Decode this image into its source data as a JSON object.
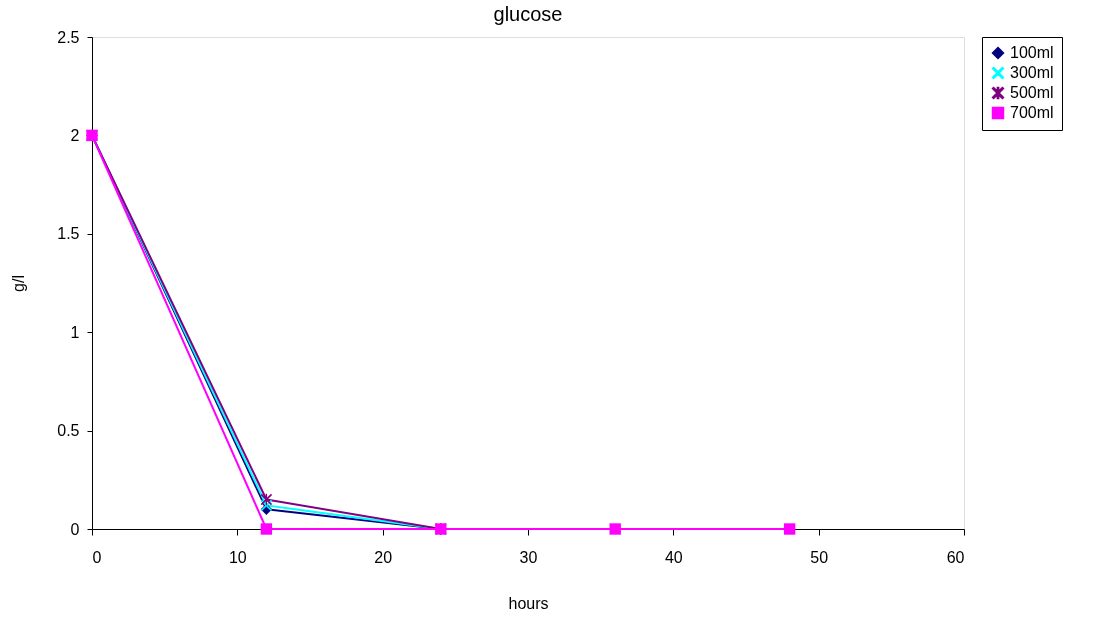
{
  "chart_data": {
    "type": "line",
    "title": "glucose",
    "xlabel": "hours",
    "ylabel": "g/l",
    "x": [
      0,
      12,
      24,
      36,
      48
    ],
    "series": [
      {
        "name": "100ml",
        "color": "#000080",
        "marker": "diamond",
        "values": [
          2,
          0.1,
          0,
          null,
          null
        ]
      },
      {
        "name": "300ml",
        "color": "#00ffff",
        "marker": "cross",
        "values": [
          2,
          0.12,
          0,
          null,
          null
        ]
      },
      {
        "name": "500ml",
        "color": "#800080",
        "marker": "star",
        "values": [
          2,
          0.15,
          0,
          null,
          null
        ]
      },
      {
        "name": "700ml",
        "color": "#ff00ff",
        "marker": "square",
        "values": [
          2,
          0,
          0,
          0,
          0
        ]
      }
    ],
    "xlim": [
      0,
      60
    ],
    "xticks": [
      0,
      10,
      20,
      30,
      40,
      50,
      60
    ],
    "ylim": [
      0,
      2.5
    ],
    "yticks": [
      0,
      0.5,
      1,
      1.5,
      2,
      2.5
    ],
    "grid": false,
    "legend": "right",
    "line_style": "solid"
  }
}
